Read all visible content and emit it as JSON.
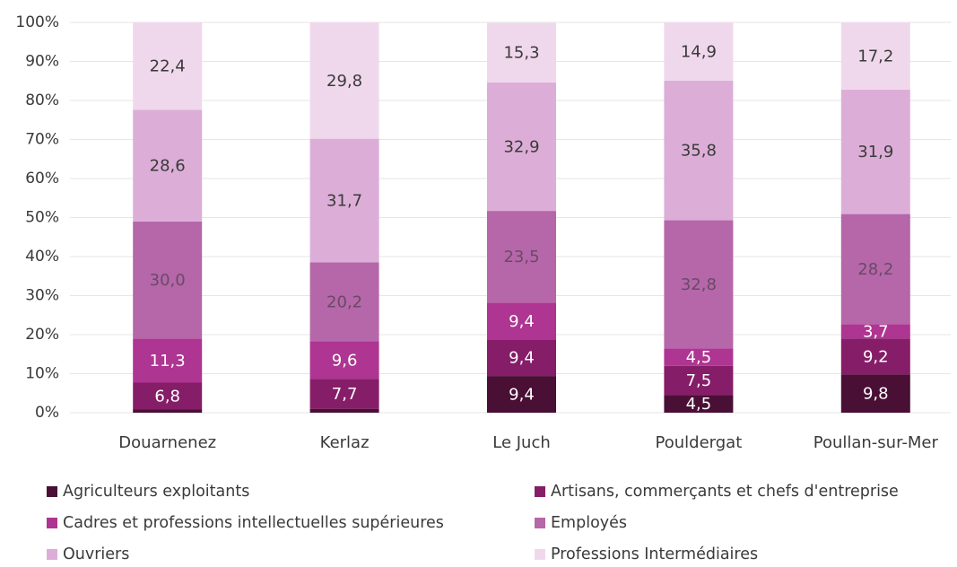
{
  "chart_data": {
    "type": "stacked_bar",
    "categories": [
      "Douarnenez",
      "Kerlaz",
      "Le Juch",
      "Pouldergat",
      "Poullan-sur-Mer"
    ],
    "ylim": [
      0,
      100
    ],
    "yticks": [
      {
        "value": 0,
        "label": "0%"
      },
      {
        "value": 10,
        "label": "10%"
      },
      {
        "value": 20,
        "label": "20%"
      },
      {
        "value": 30,
        "label": "30%"
      },
      {
        "value": 40,
        "label": "40%"
      },
      {
        "value": 50,
        "label": "50%"
      },
      {
        "value": 60,
        "label": "60%"
      },
      {
        "value": 70,
        "label": "70%"
      },
      {
        "value": 80,
        "label": "80%"
      },
      {
        "value": 90,
        "label": "90%"
      },
      {
        "value": 100,
        "label": "100%"
      }
    ],
    "grid": true,
    "series": [
      {
        "name": "Agriculteurs exploitants",
        "color": "#4a0f35",
        "values": [
          0.9,
          1.0,
          9.4,
          4.5,
          9.8
        ],
        "value_labels": [
          null,
          null,
          "9,4",
          "4,5",
          "9,8"
        ]
      },
      {
        "name": "Artisans, commerçants et chefs d'entreprise",
        "color": "#861d68",
        "values": [
          6.8,
          7.7,
          9.4,
          7.5,
          9.2
        ],
        "value_labels": [
          "6,8",
          "7,7",
          "9,4",
          "7,5",
          "9,2"
        ]
      },
      {
        "name": "Cadres et professions intellectuelles supérieures",
        "color": "#ae3591",
        "values": [
          11.3,
          9.6,
          9.4,
          4.5,
          3.7
        ],
        "value_labels": [
          "11,3",
          "9,6",
          "9,4",
          "4,5",
          "3,7"
        ]
      },
      {
        "name": "Employés",
        "color": "#b567a9",
        "values": [
          30.0,
          20.2,
          23.5,
          32.8,
          28.2
        ],
        "value_labels": [
          "30,0",
          "20,2",
          "23,5",
          "32,8",
          "28,2"
        ]
      },
      {
        "name": "Ouvriers",
        "color": "#dcaed7",
        "values": [
          28.6,
          31.7,
          32.9,
          35.8,
          31.9
        ],
        "value_labels": [
          "28,6",
          "31,7",
          "32,9",
          "35,8",
          "31,9"
        ]
      },
      {
        "name": "Professions Intermédiaires",
        "color": "#f0d8ec",
        "values": [
          22.4,
          29.8,
          15.3,
          14.9,
          17.2
        ],
        "value_labels": [
          "22,4",
          "29,8",
          "15,3",
          "14,9",
          "17,2"
        ]
      }
    ]
  }
}
